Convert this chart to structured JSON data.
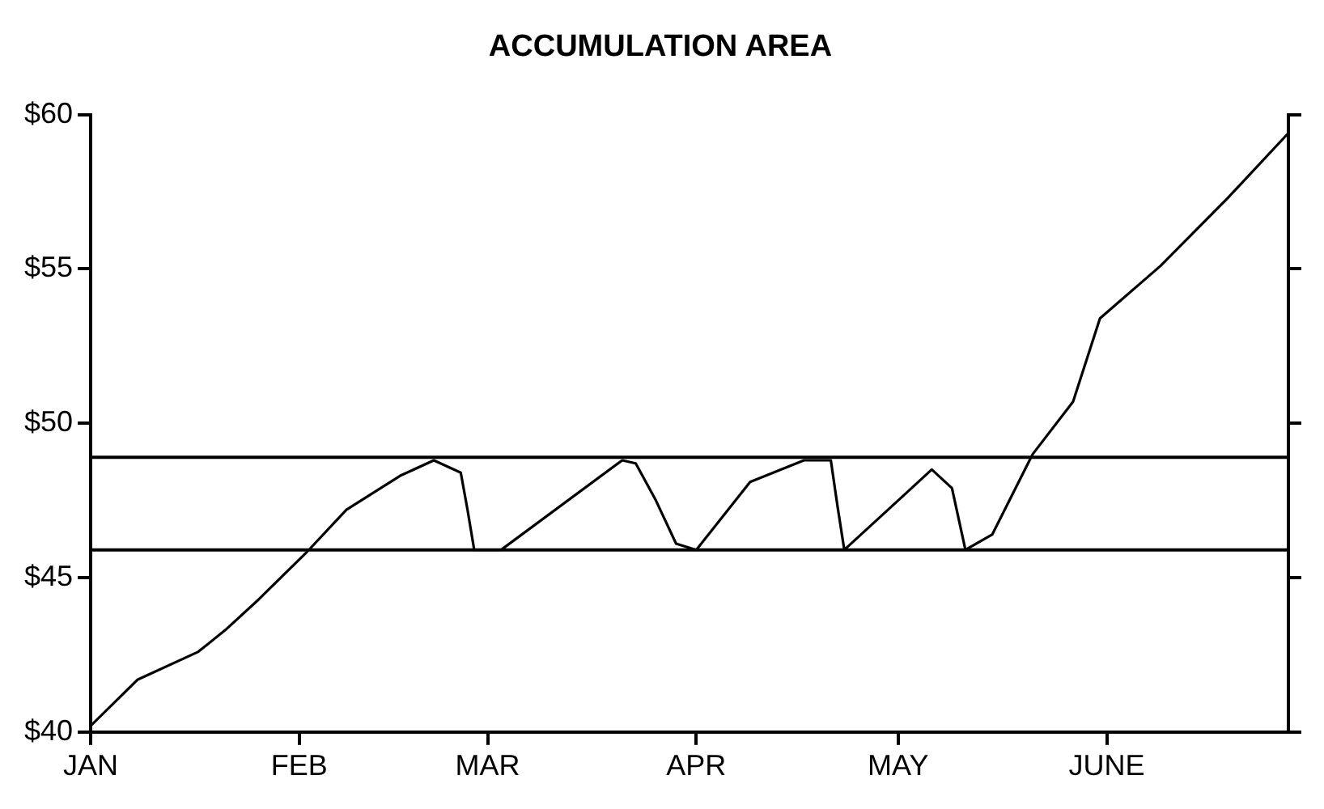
{
  "chart_data": {
    "type": "line",
    "title": "ACCUMULATION AREA",
    "x": [
      "--01-01",
      "--01-08",
      "--01-17",
      "--01-21",
      "--01-26",
      "--02-02",
      "--02-08",
      "--02-16",
      "--02-21",
      "--02-25",
      "--02-26",
      "--02-27",
      "--03-03",
      "--03-21",
      "--03-23",
      "--03-26",
      "--03-29",
      "--04-01",
      "--04-09",
      "--04-17",
      "--04-21",
      "--04-22",
      "--04-23",
      "--05-01",
      "--05-06",
      "--05-09",
      "--05-11",
      "--05-15",
      "--05-21",
      "--05-27",
      "--05-31",
      "--06-09",
      "--06-19",
      "--06-28"
    ],
    "series": [
      {
        "color": "#000000",
        "values": [
          40.2,
          41.7,
          42.6,
          43.3,
          44.3,
          45.8,
          47.2,
          48.3,
          48.8,
          48.4,
          47.2,
          45.9,
          45.9,
          48.8,
          48.7,
          47.5,
          46.1,
          45.9,
          48.1,
          48.8,
          48.8,
          47.3,
          45.9,
          47.5,
          48.5,
          47.9,
          45.9,
          46.4,
          49.0,
          50.7,
          53.4,
          55.1,
          57.3,
          59.4
        ]
      }
    ],
    "xlim": [
      "--01-01",
      "--06-28"
    ],
    "xticks": [
      {
        "value": "--01-01",
        "label": "JAN"
      },
      {
        "value": "--02-01",
        "label": "FEB"
      },
      {
        "value": "--03-01",
        "label": "MAR"
      },
      {
        "value": "--04-01",
        "label": "APR"
      },
      {
        "value": "--05-01",
        "label": "MAY"
      },
      {
        "value": "--06-01",
        "label": "JUNE"
      }
    ],
    "ylim": [
      40,
      60
    ],
    "yticks": [
      {
        "value": 40,
        "label": "$40"
      },
      {
        "value": 45,
        "label": "$45"
      },
      {
        "value": 50,
        "label": "$50"
      },
      {
        "value": 55,
        "label": "$55"
      },
      {
        "value": 60,
        "label": "$60"
      }
    ],
    "ref_lines": [
      {
        "axis": "y",
        "value": 48.9,
        "color": "#000000"
      },
      {
        "axis": "y",
        "value": 45.9,
        "color": "#000000"
      }
    ],
    "grid": false,
    "legend": false,
    "marker": "none",
    "line_style": "solid"
  }
}
